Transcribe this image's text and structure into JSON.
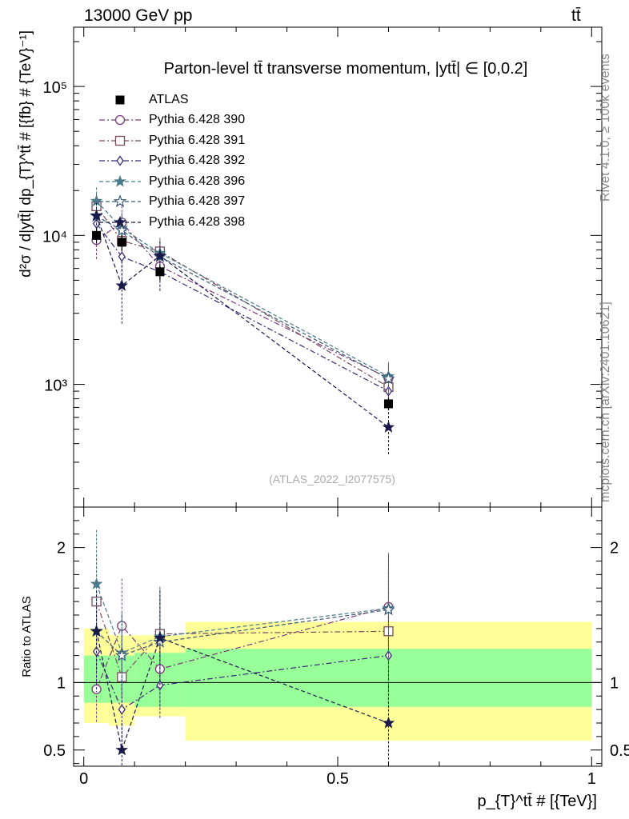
{
  "header": {
    "energy": "13000 GeV pp",
    "process": "tt̄"
  },
  "side_texts": {
    "rivet": "Rivet 4.1.0, ≥ 100k events",
    "mcplots": "mcplots.cern.ch [arXiv:2401.10621]"
  },
  "chart_data": {
    "type": "scatter",
    "title": "Parton-level tt̄ transverse momentum, |ytt̄| ∈ [0,0.2]",
    "watermark": "(ATLAS_2022_I2077575)",
    "xlabel": "p_{T}^tt̄ # [{TeV}]",
    "ylabel_main": "d²σ / d|ytt̄| dp_{T}^tt̄ # [{fb} # {TeV}⁻¹]",
    "ylabel_ratio": "Ratio to ATLAS",
    "x_range": [
      -0.02,
      1.02
    ],
    "x_ticks": [
      "0",
      "0.5",
      "1"
    ],
    "y_main_range": [
      150,
      250000
    ],
    "y_main_ticks": [
      "10³",
      "10⁴",
      "10⁵"
    ],
    "y_ratio_range": [
      0.38,
      2.3
    ],
    "y_ratio_ticks": [
      "0.5",
      "1",
      "2"
    ],
    "bin_edges": [
      0,
      0.05,
      0.1,
      0.2,
      1.0
    ],
    "x_points": [
      0.025,
      0.075,
      0.15,
      0.6
    ],
    "reference": {
      "name": "ATLAS",
      "values": [
        10000,
        9000,
        5700,
        740
      ],
      "errors": [
        1200,
        1100,
        700,
        70
      ],
      "ratio_band_inner": [
        [
          0.85,
          1.2
        ],
        [
          0.85,
          1.2
        ],
        [
          0.82,
          1.22
        ],
        [
          0.82,
          1.25
        ]
      ],
      "ratio_band_outer": [
        [
          0.7,
          1.4
        ],
        [
          0.68,
          1.35
        ],
        [
          0.75,
          1.35
        ],
        [
          0.57,
          1.45
        ]
      ]
    },
    "series": [
      {
        "name": "Pythia 6.428 390",
        "marker": "circle-open",
        "dash": "dashdot",
        "color": "#7a3a7a",
        "values": [
          9300,
          12200,
          6200,
          1100
        ],
        "errors": [
          2500,
          3600,
          2000,
          300
        ],
        "ratio": [
          0.95,
          1.42,
          1.1,
          1.56
        ],
        "ratio_err": [
          0.25,
          0.35,
          0.3,
          0.4
        ]
      },
      {
        "name": "Pythia 6.428 391",
        "marker": "square-open",
        "dash": "dashdot",
        "color": "#7a4a5a",
        "values": [
          15700,
          9200,
          7800,
          960
        ],
        "errors": [
          3500,
          2500,
          1800,
          250
        ],
        "ratio": [
          1.6,
          1.04,
          1.36,
          1.38
        ],
        "ratio_err": [
          0.35,
          0.3,
          0.35,
          0.45
        ]
      },
      {
        "name": "Pythia 6.428 392",
        "marker": "diamond-open",
        "dash": "dashdot",
        "color": "#3a2a7a",
        "values": [
          12000,
          7200,
          5700,
          900
        ],
        "errors": [
          2800,
          2000,
          1500,
          230
        ],
        "ratio": [
          1.23,
          0.8,
          0.98,
          1.2
        ],
        "ratio_err": [
          0.3,
          0.25,
          0.25,
          0.4
        ]
      },
      {
        "name": "Pythia 6.428 396",
        "marker": "star-filled",
        "dash": "dashed",
        "color": "#4a7a8a",
        "values": [
          17000,
          11200,
          7600,
          1130
        ],
        "errors": [
          4000,
          3000,
          2000,
          280
        ],
        "ratio": [
          1.73,
          1.22,
          1.34,
          1.55
        ],
        "ratio_err": [
          0.4,
          0.3,
          0.35,
          0.4
        ]
      },
      {
        "name": "Pythia 6.428 397",
        "marker": "star-open",
        "dash": "dashed",
        "color": "#3a5a7a",
        "values": [
          13500,
          10800,
          7200,
          1090
        ],
        "errors": [
          3000,
          2800,
          1800,
          270
        ],
        "ratio": [
          1.38,
          1.2,
          1.3,
          1.54
        ],
        "ratio_err": [
          0.3,
          0.3,
          0.35,
          0.4
        ]
      },
      {
        "name": "Pythia 6.428 398",
        "marker": "star-filled",
        "dash": "dashed",
        "color": "#1a1a4a",
        "values": [
          13600,
          4600,
          7300,
          515
        ],
        "errors": [
          3000,
          2100,
          1900,
          180
        ],
        "ratio": [
          1.38,
          0.5,
          1.33,
          0.7
        ],
        "ratio_err": [
          0.3,
          0.2,
          0.35,
          0.28
        ]
      }
    ]
  }
}
